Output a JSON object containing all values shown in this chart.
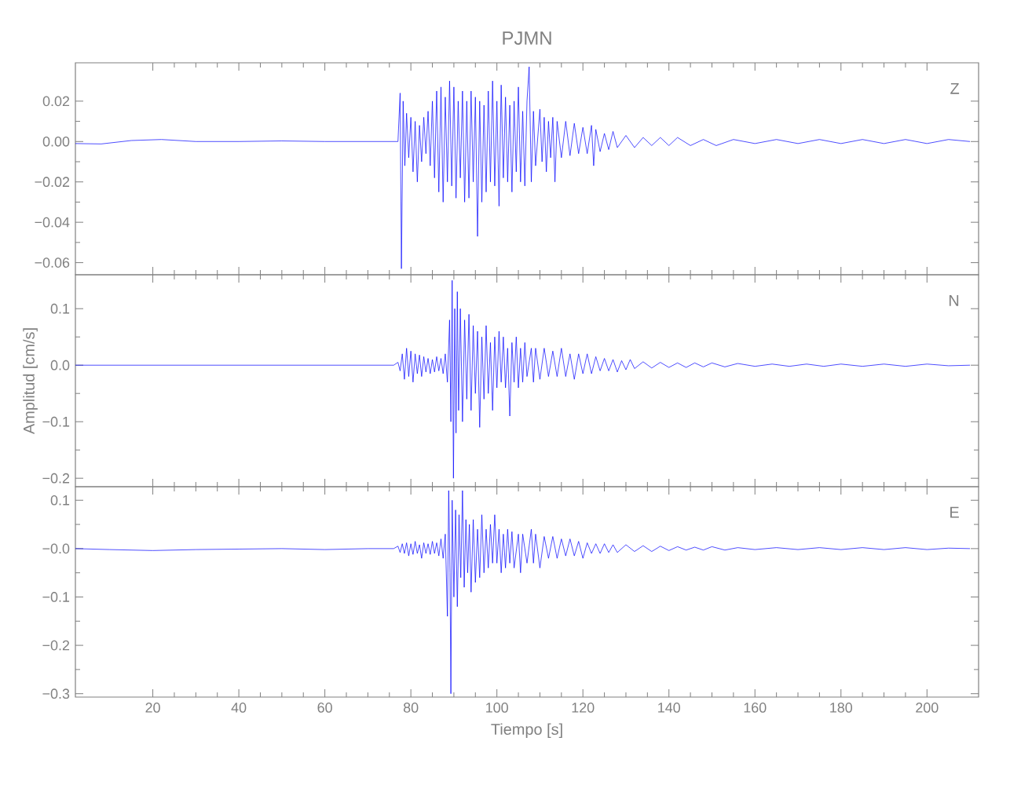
{
  "chart_data": [
    {
      "type": "line",
      "title": "PJMN",
      "annotations": [
        "Z"
      ],
      "xlim": [
        2,
        212
      ],
      "ylim": [
        -0.066,
        0.039
      ],
      "tick_labels": "y",
      "xticks": [
        20,
        40,
        60,
        80,
        100,
        120,
        140,
        160,
        180,
        200
      ],
      "yticks": [
        {
          "value": -0.06,
          "label": "−0.06"
        },
        {
          "value": -0.04,
          "label": "−0.04"
        },
        {
          "value": -0.02,
          "label": "−0.02"
        },
        {
          "value": 0,
          "label": "0.00"
        },
        {
          "value": 0.02,
          "label": "0.02"
        }
      ],
      "series": [
        {
          "color": "#0000ff",
          "x": [
            2,
            8,
            15,
            22,
            30,
            40,
            50,
            60,
            70,
            77,
            77.5,
            77.8,
            78.2,
            78.6,
            79,
            79.5,
            80,
            80.5,
            81,
            81.5,
            82,
            82.5,
            83,
            83.5,
            84,
            84.5,
            85,
            85.5,
            86,
            86.5,
            87,
            87.5,
            88,
            88.5,
            89,
            89.5,
            90,
            90.5,
            91,
            91.5,
            92,
            92.5,
            93,
            93.5,
            94,
            94.5,
            95,
            95.5,
            96,
            96.5,
            97,
            97.5,
            98,
            98.5,
            99,
            99.5,
            100,
            100.5,
            101,
            101.5,
            102,
            102.5,
            103,
            103.5,
            104,
            104.5,
            105,
            105.5,
            106,
            106.5,
            107,
            107.5,
            108,
            108.5,
            109,
            110,
            110.5,
            111,
            111.5,
            112,
            112.5,
            113,
            113.5,
            114,
            115,
            116,
            117,
            118,
            119,
            120,
            121,
            122,
            122.5,
            123,
            124,
            125,
            126,
            127,
            128,
            130,
            132,
            134,
            136,
            138,
            140,
            142,
            145,
            148,
            151,
            155,
            160,
            165,
            170,
            175,
            180,
            185,
            190,
            195,
            200,
            205,
            210
          ],
          "values": [
            -0.001,
            -0.0012,
            0.0005,
            0.001,
            0,
            0,
            0.0003,
            0,
            0,
            0,
            0.024,
            -0.063,
            0.02,
            -0.012,
            0.014,
            -0.008,
            0.012,
            -0.015,
            0.01,
            -0.02,
            0.008,
            -0.01,
            0.012,
            -0.006,
            0.015,
            -0.012,
            0.02,
            -0.018,
            0.025,
            -0.025,
            0.027,
            -0.03,
            0.022,
            -0.02,
            0.03,
            -0.022,
            0.027,
            -0.028,
            0.02,
            -0.018,
            0.025,
            -0.03,
            0.02,
            -0.028,
            0.025,
            -0.02,
            0.022,
            -0.047,
            0.02,
            -0.03,
            0.018,
            -0.025,
            0.025,
            -0.02,
            0.03,
            -0.022,
            0.02,
            -0.032,
            0.028,
            -0.018,
            0.022,
            -0.02,
            0.018,
            -0.025,
            0.02,
            -0.015,
            0.027,
            -0.02,
            0.015,
            -0.022,
            0.02,
            0.037,
            -0.02,
            0.015,
            -0.012,
            0.016,
            -0.01,
            0.012,
            -0.015,
            0.01,
            -0.008,
            0.012,
            -0.02,
            0.01,
            -0.008,
            0.01,
            -0.007,
            0.009,
            -0.006,
            0.007,
            -0.006,
            0.008,
            -0.012,
            0.006,
            -0.005,
            0.004,
            -0.004,
            0.005,
            -0.003,
            0.003,
            -0.003,
            0.002,
            -0.002,
            0.002,
            -0.002,
            0.002,
            -0.002,
            0.001,
            -0.002,
            0.001,
            -0.001,
            0.001,
            -0.001,
            0.001,
            -0.001,
            0.001,
            -0.001,
            0.001,
            -0.001,
            0.001,
            0
          ]
        }
      ]
    },
    {
      "type": "line",
      "ylabel": "Amplitud [cm/s]",
      "annotations": [
        "N"
      ],
      "xlim": [
        2,
        212
      ],
      "ylim": [
        -0.215,
        0.16
      ],
      "tick_labels": "y",
      "xticks": [
        20,
        40,
        60,
        80,
        100,
        120,
        140,
        160,
        180,
        200
      ],
      "yticks": [
        {
          "value": -0.2,
          "label": "−0.2"
        },
        {
          "value": -0.1,
          "label": "−0.1"
        },
        {
          "value": 0,
          "label": "0.0"
        },
        {
          "value": 0.1,
          "label": "0.1"
        }
      ],
      "series": [
        {
          "color": "#0000ff",
          "x": [
            2,
            20,
            40,
            60,
            76,
            77,
            77.5,
            78,
            78.5,
            79,
            79.5,
            80,
            80.5,
            81,
            81.5,
            82,
            82.5,
            83,
            83.5,
            84,
            84.5,
            85,
            85.5,
            86,
            86.5,
            87,
            87.5,
            88,
            88.5,
            89,
            89.3,
            89.6,
            89.9,
            90.2,
            90.5,
            90.8,
            91.1,
            91.5,
            92,
            92.5,
            93,
            93.5,
            94,
            94.5,
            95,
            95.5,
            96,
            96.5,
            97,
            97.5,
            98,
            98.5,
            99,
            99.5,
            100,
            100.5,
            101,
            101.5,
            102,
            102.5,
            103,
            103.5,
            104,
            104.5,
            105,
            105.5,
            106,
            106.5,
            107,
            108,
            108.5,
            109,
            110,
            111,
            112,
            113,
            114,
            115,
            116,
            117,
            118,
            119,
            120,
            121,
            122,
            123,
            124,
            125,
            126,
            127,
            128,
            129,
            130,
            131,
            132,
            134,
            136,
            138,
            140,
            142,
            144,
            146,
            148,
            150,
            153,
            156,
            160,
            164,
            168,
            172,
            176,
            180,
            185,
            190,
            195,
            200,
            205,
            210
          ],
          "values": [
            0,
            0,
            0,
            0,
            0,
            0.005,
            -0.01,
            0.02,
            -0.025,
            0.03,
            -0.02,
            0.025,
            -0.03,
            0.02,
            -0.015,
            0.018,
            -0.02,
            0.015,
            -0.012,
            0.012,
            -0.015,
            0.01,
            -0.012,
            0.015,
            -0.01,
            0.012,
            -0.015,
            0.02,
            -0.03,
            0.08,
            -0.1,
            0.15,
            -0.2,
            0.1,
            -0.12,
            0.13,
            -0.08,
            0.1,
            -0.1,
            0.08,
            -0.06,
            0.09,
            -0.08,
            0.07,
            -0.05,
            0.06,
            -0.11,
            0.05,
            -0.06,
            0.07,
            -0.05,
            0.04,
            -0.08,
            0.05,
            -0.04,
            0.06,
            -0.03,
            0.05,
            -0.04,
            0.03,
            -0.09,
            0.04,
            -0.03,
            0.05,
            -0.04,
            0.03,
            -0.03,
            0.04,
            -0.02,
            0.03,
            -0.03,
            0.03,
            -0.025,
            0.03,
            -0.02,
            0.025,
            -0.02,
            0.03,
            -0.02,
            0.02,
            -0.025,
            0.02,
            -0.015,
            0.02,
            -0.015,
            0.015,
            -0.01,
            0.012,
            -0.01,
            0.01,
            -0.012,
            0.008,
            -0.008,
            0.01,
            -0.006,
            0.006,
            -0.005,
            0.005,
            -0.004,
            0.004,
            -0.004,
            0.004,
            -0.003,
            0.004,
            -0.003,
            0.003,
            -0.002,
            0.002,
            -0.002,
            0.002,
            -0.002,
            0.002,
            -0.002,
            0.002,
            -0.002,
            0.002,
            -0.001,
            0
          ]
        }
      ]
    },
    {
      "type": "line",
      "xlabel": "Tiempo [s]",
      "annotations": [
        "E"
      ],
      "xlim": [
        2,
        212
      ],
      "ylim": [
        -0.307,
        0.128
      ],
      "xticks": [
        20,
        40,
        60,
        80,
        100,
        120,
        140,
        160,
        180,
        200
      ],
      "yticks": [
        {
          "value": -0.3,
          "label": "−0.3"
        },
        {
          "value": -0.2,
          "label": "−0.2"
        },
        {
          "value": -0.1,
          "label": "−0.1"
        },
        {
          "value": 0,
          "label": "−0.0"
        },
        {
          "value": 0.1,
          "label": "0.1"
        }
      ],
      "series": [
        {
          "color": "#0000ff",
          "x": [
            2,
            10,
            20,
            30,
            40,
            50,
            60,
            70,
            76,
            77,
            77.5,
            78,
            78.5,
            79,
            79.5,
            80,
            80.5,
            81,
            81.5,
            82,
            82.5,
            83,
            83.5,
            84,
            84.5,
            85,
            85.5,
            86,
            86.5,
            87,
            87.5,
            88,
            88.5,
            88.8,
            89.1,
            89.3,
            89.6,
            90,
            90.4,
            90.8,
            91.2,
            91.6,
            92,
            92.4,
            92.8,
            93.2,
            93.6,
            94,
            94.5,
            95,
            95.5,
            96,
            96.5,
            97,
            97.5,
            98,
            98.5,
            99,
            99.5,
            100,
            100.5,
            101,
            101.5,
            102,
            102.5,
            103,
            103.5,
            104,
            105,
            105.5,
            106,
            107,
            108,
            108.5,
            109,
            110,
            111,
            112,
            113,
            114,
            115,
            116,
            117,
            118,
            119,
            120,
            121,
            122,
            123,
            124,
            125,
            126,
            127,
            128,
            130,
            132,
            134,
            136,
            138,
            140,
            142,
            144,
            146,
            148,
            150,
            153,
            156,
            160,
            165,
            170,
            175,
            180,
            185,
            190,
            195,
            200,
            205,
            210
          ],
          "values": [
            0,
            -0.002,
            -0.004,
            -0.002,
            -0.001,
            0,
            -0.002,
            0,
            0,
            0.005,
            -0.008,
            0.01,
            -0.01,
            0.012,
            -0.015,
            0.01,
            -0.012,
            0.015,
            -0.01,
            0.008,
            -0.02,
            0.012,
            -0.01,
            0.01,
            -0.012,
            0.015,
            -0.01,
            0.012,
            -0.015,
            0.02,
            -0.02,
            0.03,
            -0.14,
            0.12,
            -0.05,
            -0.3,
            0.1,
            -0.1,
            0.08,
            -0.12,
            0.07,
            -0.06,
            0.12,
            -0.08,
            0.06,
            -0.05,
            0.05,
            -0.09,
            0.06,
            -0.07,
            0.04,
            -0.06,
            0.07,
            -0.05,
            0.04,
            -0.04,
            0.05,
            -0.03,
            0.07,
            -0.03,
            0.04,
            -0.05,
            0.03,
            -0.04,
            0.04,
            -0.03,
            0.035,
            -0.04,
            0.03,
            -0.05,
            0.03,
            -0.03,
            0.04,
            -0.03,
            0.03,
            -0.04,
            0.025,
            -0.02,
            0.025,
            -0.02,
            0.02,
            -0.015,
            0.02,
            -0.015,
            0.015,
            -0.02,
            0.012,
            -0.01,
            0.01,
            -0.01,
            0.01,
            -0.008,
            0.008,
            -0.008,
            0.008,
            -0.006,
            0.006,
            -0.006,
            0.005,
            -0.004,
            0.004,
            -0.003,
            0.003,
            -0.003,
            0.004,
            -0.003,
            0.002,
            -0.002,
            0.002,
            -0.002,
            0.002,
            -0.002,
            0.002,
            -0.002,
            0.002,
            -0.002,
            0.001,
            0
          ]
        }
      ]
    }
  ]
}
